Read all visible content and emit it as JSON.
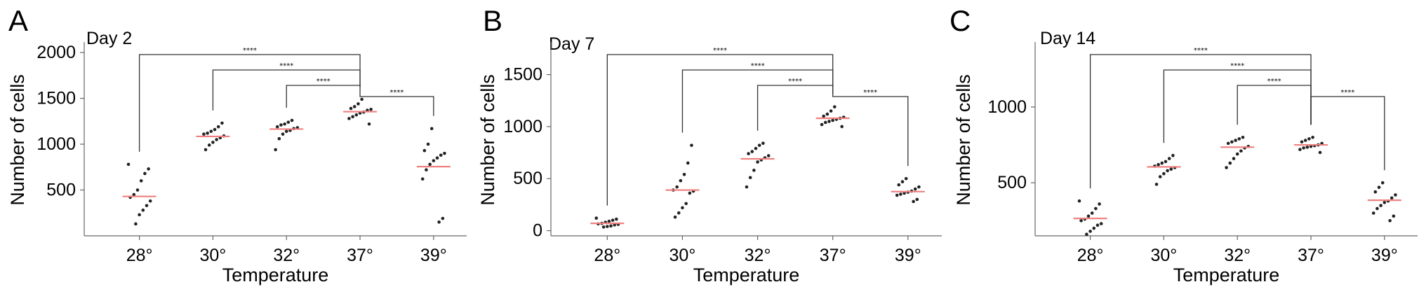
{
  "chart_data": [
    {
      "type": "scatter",
      "panel_label": "A",
      "title": "Day 2",
      "xlabel": "Temperature",
      "ylabel": "Number of cells",
      "categories": [
        "28°",
        "30°",
        "32°",
        "37°",
        "39°"
      ],
      "ylim": [
        0,
        2100
      ],
      "yticks": [
        500,
        1000,
        1500,
        2000
      ],
      "grid": false,
      "mean_color": "#f08080",
      "point_color": "#222222",
      "means": [
        430,
        1085,
        1165,
        1355,
        755
      ],
      "points": [
        [
          780,
          730,
          680,
          600,
          500,
          450,
          420,
          380,
          330,
          280,
          230,
          130
        ],
        [
          1230,
          1190,
          1160,
          1140,
          1120,
          1110,
          1090,
          1070,
          1050,
          1020,
          990,
          940
        ],
        [
          1260,
          1240,
          1220,
          1210,
          1190,
          1180,
          1170,
          1150,
          1140,
          1110,
          1060,
          940
        ],
        [
          1490,
          1440,
          1410,
          1390,
          1380,
          1370,
          1350,
          1340,
          1320,
          1300,
          1280,
          1220
        ],
        [
          1170,
          1000,
          930,
          900,
          880,
          850,
          820,
          780,
          720,
          620,
          190,
          150
        ]
      ],
      "comparisons": [
        {
          "from": "28°",
          "to": "37°",
          "label": "****"
        },
        {
          "from": "30°",
          "to": "37°",
          "label": "****"
        },
        {
          "from": "32°",
          "to": "37°",
          "label": "****"
        },
        {
          "from": "37°",
          "to": "39°",
          "label": "****"
        }
      ]
    },
    {
      "type": "scatter",
      "panel_label": "B",
      "title": "Day 7",
      "xlabel": "Temperature",
      "ylabel": "Number of cells",
      "categories": [
        "28°",
        "30°",
        "32°",
        "37°",
        "39°"
      ],
      "ylim": [
        -50,
        1800
      ],
      "yticks": [
        0,
        500,
        1000,
        1500
      ],
      "grid": false,
      "mean_color": "#f08080",
      "point_color": "#222222",
      "means": [
        70,
        390,
        690,
        1080,
        375
      ],
      "points": [
        [
          120,
          110,
          100,
          90,
          80,
          70,
          65,
          60,
          55,
          45,
          40,
          35
        ],
        [
          820,
          650,
          540,
          480,
          420,
          390,
          380,
          360,
          260,
          220,
          170,
          130
        ],
        [
          840,
          820,
          790,
          760,
          740,
          720,
          700,
          680,
          660,
          580,
          510,
          420
        ],
        [
          1190,
          1150,
          1120,
          1100,
          1090,
          1080,
          1070,
          1060,
          1050,
          1040,
          1020,
          1000
        ],
        [
          500,
          470,
          440,
          420,
          400,
          380,
          370,
          360,
          350,
          340,
          300,
          280
        ]
      ],
      "comparisons": [
        {
          "from": "28°",
          "to": "37°",
          "label": "****"
        },
        {
          "from": "30°",
          "to": "37°",
          "label": "****"
        },
        {
          "from": "32°",
          "to": "37°",
          "label": "****"
        },
        {
          "from": "37°",
          "to": "39°",
          "label": "****"
        }
      ]
    },
    {
      "type": "scatter",
      "panel_label": "C",
      "title": "Day 14",
      "xlabel": "Temperature",
      "ylabel": "Number of cells",
      "categories": [
        "28°",
        "30°",
        "32°",
        "37°",
        "39°"
      ],
      "ylim": [
        150,
        1420
      ],
      "yticks": [
        500,
        1000
      ],
      "grid": false,
      "mean_color": "#f08080",
      "point_color": "#222222",
      "means": [
        265,
        605,
        735,
        750,
        385
      ],
      "points": [
        [
          380,
          360,
          330,
          300,
          280,
          260,
          250,
          230,
          220,
          200,
          180,
          160
        ],
        [
          680,
          660,
          640,
          630,
          620,
          610,
          600,
          590,
          580,
          560,
          540,
          490
        ],
        [
          800,
          790,
          780,
          770,
          760,
          740,
          730,
          710,
          690,
          660,
          630,
          600
        ],
        [
          800,
          790,
          780,
          770,
          760,
          750,
          745,
          740,
          735,
          730,
          720,
          700
        ],
        [
          500,
          470,
          440,
          420,
          400,
          380,
          370,
          350,
          330,
          300,
          280,
          250
        ]
      ],
      "comparisons": [
        {
          "from": "28°",
          "to": "37°",
          "label": "****"
        },
        {
          "from": "30°",
          "to": "37°",
          "label": "****"
        },
        {
          "from": "32°",
          "to": "37°",
          "label": "****"
        },
        {
          "from": "37°",
          "to": "39°",
          "label": "****"
        }
      ]
    }
  ]
}
